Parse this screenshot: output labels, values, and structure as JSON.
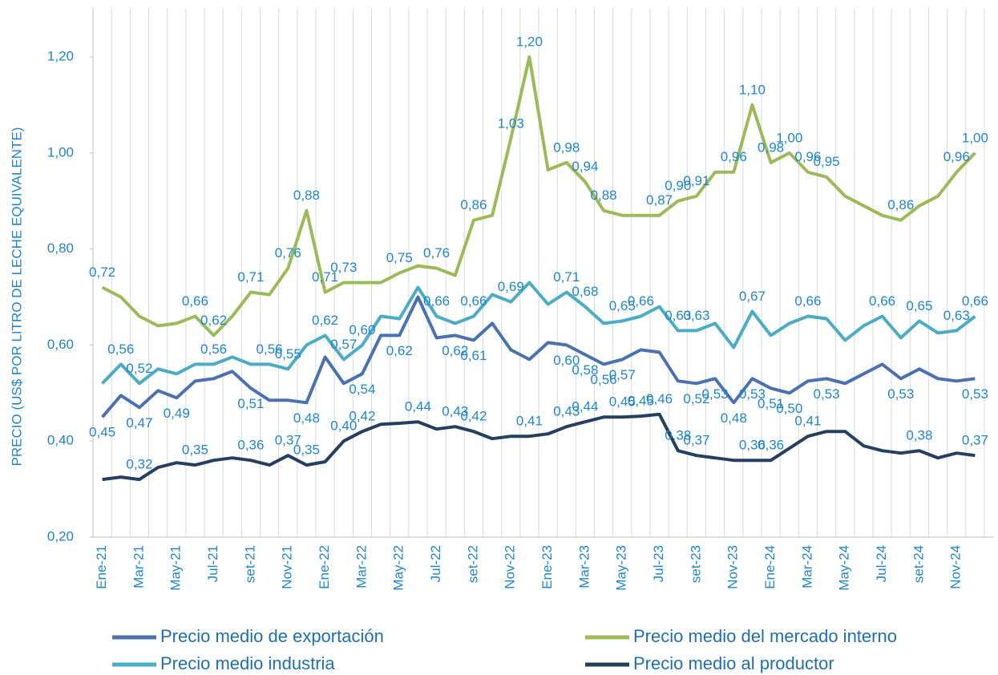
{
  "chart_data": {
    "type": "line",
    "y_axis_label": "PRECIO (US$ POR LITRO DE LECHE EQUIVALENTE)",
    "categories": [
      "Ene-21",
      null,
      "Mar-21",
      null,
      "May-21",
      null,
      "Jul-21",
      null,
      "set-21",
      null,
      "Nov-21",
      null,
      "Ene-22",
      null,
      "Mar-22",
      null,
      "May-22",
      null,
      "Jul-22",
      null,
      "set-22",
      null,
      "Nov-22",
      null,
      "Ene-23",
      null,
      "Mar-23",
      null,
      "May-23",
      null,
      "Jul-23",
      null,
      "set-23",
      null,
      "Nov-23",
      null,
      "Ene-24",
      null,
      "Mar-24",
      null,
      "May-24",
      null,
      "Jul-24",
      null,
      "set-24",
      null,
      "Nov-24",
      null
    ],
    "ylim": [
      0.2,
      1.2
    ],
    "yticks": [
      {
        "value": 0.2,
        "label": "0,20"
      },
      {
        "value": 0.4,
        "label": "0,40"
      },
      {
        "value": 0.6,
        "label": "0,60"
      },
      {
        "value": 0.8,
        "label": "0,80"
      },
      {
        "value": 1.0,
        "label": "1,00"
      },
      {
        "value": 1.2,
        "label": "1,20"
      }
    ],
    "grid": true,
    "series": [
      {
        "name": "Precio medio de exportación",
        "color": "#4a72b2",
        "values": [
          0.45,
          0.495,
          0.47,
          0.505,
          0.49,
          0.525,
          0.53,
          0.545,
          0.51,
          0.485,
          0.485,
          0.48,
          0.575,
          0.52,
          0.54,
          0.62,
          0.62,
          0.7,
          0.615,
          0.62,
          0.61,
          0.645,
          0.59,
          0.57,
          0.605,
          0.6,
          0.58,
          0.56,
          0.57,
          0.59,
          0.585,
          0.525,
          0.52,
          0.53,
          0.48,
          0.53,
          0.51,
          0.5,
          0.525,
          0.53,
          0.52,
          0.54,
          0.56,
          0.53,
          0.55,
          0.53,
          0.525,
          0.53
        ],
        "value_labels": [
          "0,45",
          null,
          "0,47",
          null,
          "0,49",
          null,
          null,
          null,
          "0,51",
          null,
          null,
          "0,48",
          null,
          null,
          "0,54",
          null,
          "0,62",
          null,
          null,
          "0,62",
          "0,61",
          null,
          null,
          null,
          null,
          "0,60",
          "0,58",
          "0,56",
          "0,57",
          null,
          null,
          null,
          "0,52",
          "0,53",
          "0,48",
          "0,53",
          "0,51",
          "0,50",
          null,
          "0,53",
          null,
          null,
          null,
          "0,53",
          null,
          null,
          null,
          "0,53"
        ]
      },
      {
        "name": "Precio medio del mercado interno",
        "color": "#9bbb59",
        "values": [
          0.72,
          0.7,
          0.66,
          0.64,
          0.645,
          0.66,
          0.62,
          0.66,
          0.71,
          0.705,
          0.76,
          0.88,
          0.71,
          0.73,
          0.73,
          0.73,
          0.75,
          0.765,
          0.76,
          0.745,
          0.86,
          0.87,
          1.03,
          1.2,
          0.965,
          0.98,
          0.94,
          0.88,
          0.87,
          0.87,
          0.87,
          0.9,
          0.91,
          0.96,
          0.96,
          1.1,
          0.98,
          1.0,
          0.96,
          0.95,
          0.91,
          0.89,
          0.87,
          0.86,
          0.89,
          0.91,
          0.96,
          1.0
        ],
        "value_labels": [
          "0,72",
          null,
          null,
          null,
          null,
          "0,66",
          "0,62",
          null,
          "0,71",
          null,
          "0,76",
          "0,88",
          "0,71",
          "0,73",
          null,
          null,
          "0,75",
          null,
          "0,76",
          null,
          "0,86",
          null,
          "1,03",
          "1,20",
          null,
          "0,98",
          "0,94",
          "0,88",
          null,
          null,
          "0,87",
          "0,90",
          "0,91",
          null,
          "0,96",
          "1,10",
          "0,98",
          "1,00",
          "0,96",
          "0,95",
          null,
          null,
          null,
          "0,86",
          null,
          null,
          "0,96",
          "1,00"
        ]
      },
      {
        "name": "Precio medio industria",
        "color": "#4bacc6",
        "values": [
          0.52,
          0.56,
          0.52,
          0.55,
          0.54,
          0.56,
          0.56,
          0.575,
          0.56,
          0.56,
          0.55,
          0.6,
          0.62,
          0.57,
          0.6,
          0.66,
          0.655,
          0.72,
          0.66,
          0.645,
          0.66,
          0.705,
          0.69,
          0.73,
          0.685,
          0.71,
          0.68,
          0.645,
          0.65,
          0.66,
          0.68,
          0.63,
          0.63,
          0.645,
          0.595,
          0.67,
          0.62,
          0.645,
          0.66,
          0.655,
          0.61,
          0.64,
          0.66,
          0.615,
          0.65,
          0.625,
          0.63,
          0.66
        ],
        "value_labels": [
          null,
          "0,56",
          "0,52",
          null,
          null,
          null,
          "0,56",
          null,
          null,
          "0,56",
          "0,55",
          null,
          "0,62",
          "0,57",
          "0,60",
          null,
          null,
          null,
          "0,66",
          null,
          "0,66",
          null,
          "0,69",
          null,
          null,
          "0,71",
          "0,68",
          null,
          "0,65",
          "0,66",
          null,
          "0,63",
          "0,63",
          null,
          null,
          "0,67",
          null,
          null,
          "0,66",
          null,
          null,
          null,
          "0,66",
          null,
          "0,65",
          null,
          "0,63",
          "0,66"
        ]
      },
      {
        "name": "Precio medio al productor",
        "color": "#243f60",
        "values": [
          0.32,
          0.325,
          0.32,
          0.345,
          0.355,
          0.35,
          0.36,
          0.365,
          0.36,
          0.35,
          0.37,
          0.35,
          0.357,
          0.4,
          0.42,
          0.435,
          0.437,
          0.44,
          0.425,
          0.43,
          0.42,
          0.405,
          0.41,
          0.41,
          0.415,
          0.43,
          0.44,
          0.45,
          0.45,
          0.452,
          0.456,
          0.38,
          0.37,
          0.365,
          0.36,
          0.36,
          0.36,
          0.385,
          0.41,
          0.42,
          0.42,
          0.39,
          0.38,
          0.375,
          0.38,
          0.365,
          0.375,
          0.37
        ],
        "value_labels": [
          null,
          null,
          "0,32",
          null,
          null,
          "0,35",
          null,
          null,
          "0,36",
          null,
          "0,37",
          "0,35",
          null,
          "0,40",
          "0,42",
          null,
          null,
          "0,44",
          null,
          "0,43",
          "0,42",
          null,
          null,
          "0,41",
          null,
          "0,43",
          "0,44",
          null,
          "0,45",
          "0,45",
          "0,46",
          "0,38",
          "0,37",
          null,
          null,
          "0,36",
          "0,36",
          null,
          "0,41",
          null,
          null,
          null,
          null,
          null,
          "0,38",
          null,
          null,
          "0,37"
        ]
      }
    ]
  }
}
